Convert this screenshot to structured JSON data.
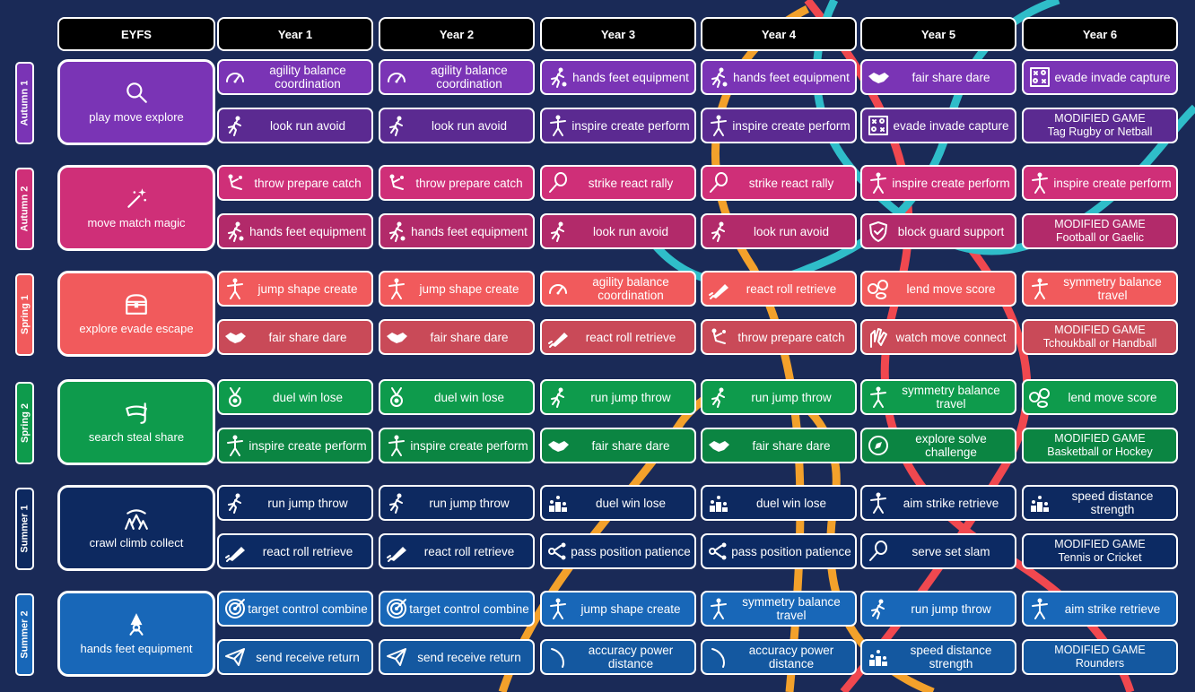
{
  "colors": {
    "background": "#1a2a57",
    "autumn1_light": "#7a34b5",
    "autumn1_dark": "#5b2a91",
    "autumn2_light": "#cf2f78",
    "autumn2_dark": "#b22a6a",
    "spring1_light": "#f15a5c",
    "spring1_dark": "#c94a58",
    "spring2_light": "#0e9b4c",
    "spring2_dark": "#0b8542",
    "summer1_light": "#0d2960",
    "summer1_dark": "#0c2a63",
    "summer2_light": "#1867b8",
    "summer2_dark": "#1458a0",
    "ribbon_teal": "#2fbdc9",
    "ribbon_red": "#f0484f",
    "ribbon_orange": "#f3a12b"
  },
  "headers": [
    "EYFS",
    "Year 1",
    "Year 2",
    "Year 3",
    "Year 4",
    "Year 5",
    "Year 6"
  ],
  "terms": [
    {
      "name": "Autumn 1",
      "color": "#7a34b5",
      "color2": "#5b2a91",
      "eyfs": {
        "label": "play move explore",
        "icon": "magnifier-icon"
      },
      "rows": [
        [
          {
            "text": "agility balance coordination",
            "icon": "speedometer-icon"
          },
          {
            "text": "agility balance coordination",
            "icon": "speedometer-icon"
          },
          {
            "text": "hands feet equipment",
            "icon": "dribbling-player-icon"
          },
          {
            "text": "hands feet equipment",
            "icon": "dribbling-player-icon"
          },
          {
            "text": "fair share dare",
            "icon": "handshake-icon"
          },
          {
            "text": "evade invade capture",
            "icon": "tactics-board-icon"
          }
        ],
        [
          {
            "text": "look run avoid",
            "icon": "running-person-icon"
          },
          {
            "text": "look run avoid",
            "icon": "running-person-icon"
          },
          {
            "text": "inspire create perform",
            "icon": "dancer-icon"
          },
          {
            "text": "inspire create perform",
            "icon": "dancer-icon"
          },
          {
            "text": "evade invade capture",
            "icon": "tactics-board-icon"
          },
          {
            "modified": true,
            "label": "MODIFIED GAME",
            "text": "Tag Rugby or Netball"
          }
        ]
      ]
    },
    {
      "name": "Autumn 2",
      "color": "#cf2f78",
      "color2": "#b22a6a",
      "eyfs": {
        "label": "move match magic",
        "icon": "magic-wand-icon"
      },
      "rows": [
        [
          {
            "text": "throw prepare catch",
            "icon": "throwing-person-icon"
          },
          {
            "text": "throw prepare catch",
            "icon": "throwing-person-icon"
          },
          {
            "text": "strike react rally",
            "icon": "racket-icon"
          },
          {
            "text": "strike react rally",
            "icon": "racket-icon"
          },
          {
            "text": "inspire create perform",
            "icon": "dancer-icon"
          },
          {
            "text": "inspire create perform",
            "icon": "dancer-icon"
          }
        ],
        [
          {
            "text": "hands feet equipment",
            "icon": "dribbling-player-icon"
          },
          {
            "text": "hands feet equipment",
            "icon": "dribbling-player-icon"
          },
          {
            "text": "look run avoid",
            "icon": "running-person-icon"
          },
          {
            "text": "look run avoid",
            "icon": "running-person-icon"
          },
          {
            "text": "block guard support",
            "icon": "shield-icon"
          },
          {
            "modified": true,
            "label": "MODIFIED GAME",
            "text": "Football or Gaelic"
          }
        ]
      ]
    },
    {
      "name": "Spring 1",
      "color": "#f15a5c",
      "color2": "#c94a58",
      "eyfs": {
        "label": "explore evade escape",
        "icon": "treasure-chest-icon"
      },
      "rows": [
        [
          {
            "text": "jump shape create",
            "icon": "jumping-person-icon"
          },
          {
            "text": "jump shape create",
            "icon": "jumping-person-icon"
          },
          {
            "text": "agility balance coordination",
            "icon": "speedometer-icon"
          },
          {
            "text": "react roll retrieve",
            "icon": "rolling-ball-icon"
          },
          {
            "text": "lend move score",
            "icon": "balls-icon"
          },
          {
            "text": "symmetry balance travel",
            "icon": "balancing-person-icon"
          }
        ],
        [
          {
            "text": "fair share dare",
            "icon": "handshake-icon"
          },
          {
            "text": "fair share dare",
            "icon": "handshake-icon"
          },
          {
            "text": "react roll retrieve",
            "icon": "rolling-ball-icon"
          },
          {
            "text": "throw prepare catch",
            "icon": "throwing-person-icon"
          },
          {
            "text": "watch move connect",
            "icon": "hands-icon"
          },
          {
            "modified": true,
            "label": "MODIFIED GAME",
            "text": "Tchoukball or Handball"
          }
        ]
      ]
    },
    {
      "name": "Spring 2",
      "color": "#0e9b4c",
      "color2": "#0b8542",
      "eyfs": {
        "label": "search steal share",
        "icon": "snorkel-mask-icon"
      },
      "rows": [
        [
          {
            "text": "duel win lose",
            "icon": "medal-icon"
          },
          {
            "text": "duel win lose",
            "icon": "medal-icon"
          },
          {
            "text": "run jump throw",
            "icon": "crouching-runner-icon"
          },
          {
            "text": "run jump throw",
            "icon": "crouching-runner-icon"
          },
          {
            "text": "symmetry balance travel",
            "icon": "balancing-person-icon"
          },
          {
            "text": "lend move score",
            "icon": "balls-icon"
          }
        ],
        [
          {
            "text": "inspire create perform",
            "icon": "dancer-icon"
          },
          {
            "text": "inspire create perform",
            "icon": "dancer-icon"
          },
          {
            "text": "fair share dare",
            "icon": "handshake-icon"
          },
          {
            "text": "fair share dare",
            "icon": "handshake-icon"
          },
          {
            "text": "explore solve challenge",
            "icon": "compass-icon"
          },
          {
            "modified": true,
            "label": "MODIFIED GAME",
            "text": "Basketball or Hockey"
          }
        ]
      ]
    },
    {
      "name": "Summer 1",
      "color": "#0d2960",
      "color2": "#0c2a63",
      "eyfs": {
        "label": "crawl climb collect",
        "icon": "jungle-scene-icon"
      },
      "rows": [
        [
          {
            "text": "run jump throw",
            "icon": "crouching-runner-icon"
          },
          {
            "text": "run jump throw",
            "icon": "crouching-runner-icon"
          },
          {
            "text": "duel win lose",
            "icon": "podium-icon"
          },
          {
            "text": "duel win lose",
            "icon": "podium-icon"
          },
          {
            "text": "aim strike retrieve",
            "icon": "batter-icon"
          },
          {
            "text": "speed distance strength",
            "icon": "podium-icon"
          }
        ],
        [
          {
            "text": "react roll retrieve",
            "icon": "rolling-ball-icon"
          },
          {
            "text": "react roll retrieve",
            "icon": "rolling-ball-icon"
          },
          {
            "text": "pass position patience",
            "icon": "share-nodes-icon"
          },
          {
            "text": "pass position patience",
            "icon": "share-nodes-icon"
          },
          {
            "text": "serve set slam",
            "icon": "racket-icon"
          },
          {
            "modified": true,
            "label": "MODIFIED GAME",
            "text": "Tennis or Cricket"
          }
        ]
      ]
    },
    {
      "name": "Summer 2",
      "color": "#1867b8",
      "color2": "#1458a0",
      "eyfs": {
        "label": "hands feet equipment",
        "icon": "gnome-icon"
      },
      "rows": [
        [
          {
            "text": "target control combine",
            "icon": "target-icon"
          },
          {
            "text": "target control combine",
            "icon": "target-icon"
          },
          {
            "text": "jump shape create",
            "icon": "jumping-person-icon"
          },
          {
            "text": "symmetry balance travel",
            "icon": "balancing-person-icon"
          },
          {
            "text": "run jump throw",
            "icon": "crouching-runner-icon"
          },
          {
            "text": "aim strike retrieve",
            "icon": "batter-icon"
          }
        ],
        [
          {
            "text": "send receive return",
            "icon": "paper-plane-icon"
          },
          {
            "text": "send receive return",
            "icon": "paper-plane-icon"
          },
          {
            "text": "accuracy power distance",
            "icon": "boomerang-icon"
          },
          {
            "text": "accuracy power distance",
            "icon": "boomerang-icon"
          },
          {
            "text": "speed distance strength",
            "icon": "podium-icon"
          },
          {
            "modified": true,
            "label": "MODIFIED GAME",
            "text": "Rounders"
          }
        ]
      ]
    }
  ]
}
